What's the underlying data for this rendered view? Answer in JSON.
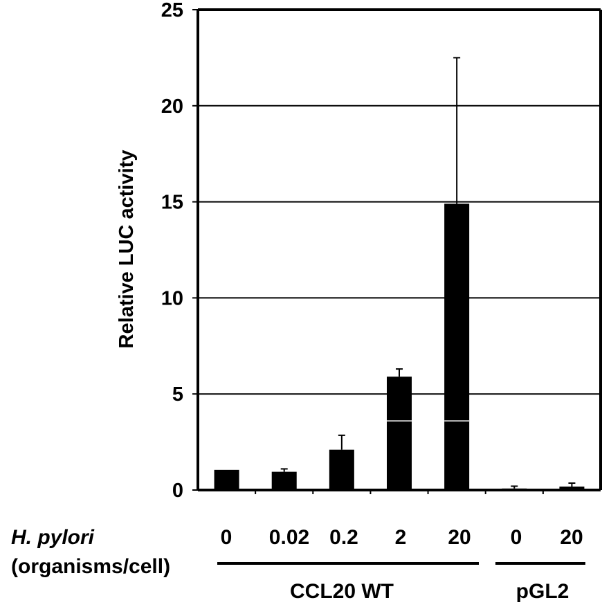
{
  "chart_data": {
    "type": "bar",
    "ylabel": "Relative LUC activity",
    "ylim": [
      0,
      25
    ],
    "yticks": [
      "0",
      "5",
      "10",
      "15",
      "20",
      "25"
    ],
    "ytick_values": [
      0,
      5,
      10,
      15,
      20,
      25
    ],
    "grid": "horizontal",
    "categories": [
      "0",
      "0.02",
      "0.2",
      "2",
      "20",
      "0",
      "20"
    ],
    "values": [
      1.05,
      0.95,
      2.1,
      5.9,
      14.9,
      0.08,
      0.18
    ],
    "error_upper": [
      0,
      0.15,
      0.75,
      0.4,
      7.6,
      0.12,
      0.18
    ],
    "groups": [
      {
        "label": "CCL20 WT",
        "categories": [
          "0",
          "0.02",
          "0.2",
          "2",
          "20"
        ]
      },
      {
        "label": "pGL2",
        "categories": [
          "0",
          "20"
        ]
      }
    ],
    "row_label_line1": "H. pylori",
    "row_label_line2": "(organisms/cell)",
    "bar_color": "#000000"
  }
}
